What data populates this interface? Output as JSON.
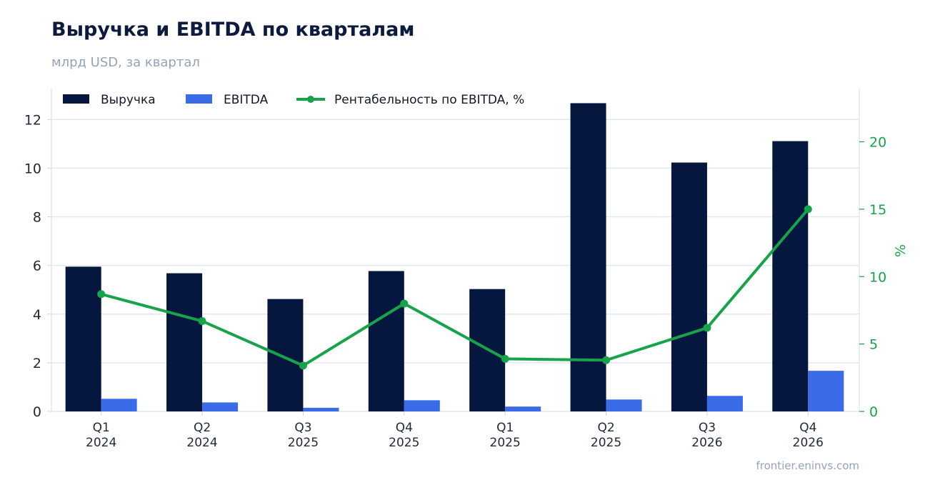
{
  "header": {
    "title": "Выручка и EBITDA по кварталам",
    "subtitle": "млрд USD, за квартал"
  },
  "footer": {
    "source": "frontier.eninvs.com"
  },
  "colors": {
    "revenue": "#05163f",
    "ebitda": "#3b6ce8",
    "margin": "#16a34a",
    "grid": "#e2e8f0",
    "axis_text": "#1f2937"
  },
  "chart_data": {
    "type": "bar",
    "title": "Выручка и EBITDA по кварталам",
    "subtitle": "млрд USD, за квартал",
    "categories": [
      [
        "Q1",
        "2024"
      ],
      [
        "Q2",
        "2024"
      ],
      [
        "Q3",
        "2025"
      ],
      [
        "Q4",
        "2025"
      ],
      [
        "Q1",
        "2025"
      ],
      [
        "Q2",
        "2025"
      ],
      [
        "Q3",
        "2026"
      ],
      [
        "Q4",
        "2026"
      ]
    ],
    "series": [
      {
        "name": "Выручка",
        "type": "bar",
        "axis": "left",
        "values": [
          5.95,
          5.68,
          4.62,
          5.77,
          5.03,
          12.67,
          10.23,
          11.11
        ]
      },
      {
        "name": "EBITDA",
        "type": "bar",
        "axis": "left",
        "values": [
          0.52,
          0.37,
          0.15,
          0.46,
          0.2,
          0.49,
          0.64,
          1.67
        ]
      },
      {
        "name": "Рентабельность по EBITDA, %",
        "type": "line",
        "axis": "right",
        "values": [
          8.7,
          6.7,
          3.4,
          8.0,
          3.9,
          3.8,
          6.2,
          15.0
        ]
      }
    ],
    "ylim": [
      0,
      13.3
    ],
    "yticks": [
      0,
      2,
      4,
      6,
      8,
      10,
      12
    ],
    "y2label": "%",
    "y2lim": [
      0,
      24
    ],
    "y2ticks": [
      0,
      5,
      10,
      15,
      20
    ],
    "legend": "top-left",
    "grid": true
  }
}
